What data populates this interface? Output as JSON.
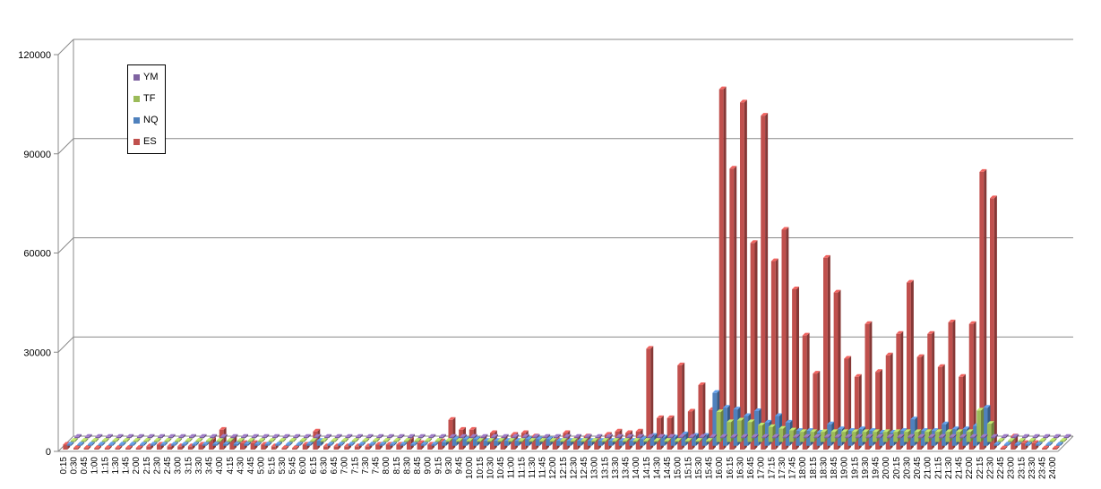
{
  "chart_data": {
    "type": "bar",
    "title": "",
    "xlabel": "",
    "ylabel": "",
    "ylim": [
      0,
      120000
    ],
    "yticks": [
      0,
      30000,
      60000,
      90000,
      120000
    ],
    "grid": true,
    "legend_position": "top-left",
    "categories": [
      "0:15",
      "0:30",
      "0:45",
      "1:00",
      "1:15",
      "1:30",
      "1:45",
      "2:00",
      "2:15",
      "2:30",
      "2:45",
      "3:00",
      "3:15",
      "3:30",
      "3:45",
      "4:00",
      "4:15",
      "4:30",
      "4:45",
      "5:00",
      "5:15",
      "5:30",
      "5:45",
      "6:00",
      "6:15",
      "6:30",
      "6:45",
      "7:00",
      "7:15",
      "7:30",
      "7:45",
      "8:00",
      "8:15",
      "8:30",
      "8:45",
      "9:00",
      "9:15",
      "9:30",
      "9:45",
      "10:00",
      "10:15",
      "10:30",
      "10:45",
      "11:00",
      "11:15",
      "11:30",
      "11:45",
      "12:00",
      "12:15",
      "12:30",
      "12:45",
      "13:00",
      "13:15",
      "13:30",
      "13:45",
      "14:00",
      "14:15",
      "14:30",
      "14:45",
      "15:00",
      "15:15",
      "15:30",
      "15:45",
      "16:00",
      "16:15",
      "16:30",
      "16:45",
      "17:00",
      "17:15",
      "17:30",
      "17:45",
      "18:00",
      "18:15",
      "18:30",
      "18:45",
      "19:00",
      "19:15",
      "19:30",
      "19:45",
      "20:00",
      "20:15",
      "20:30",
      "20:45",
      "21:00",
      "21:15",
      "21:30",
      "21:45",
      "22:00",
      "22:15",
      "22:30",
      "22:45",
      "23:00",
      "23:15",
      "23:30",
      "23:45",
      "24:00"
    ],
    "series": [
      {
        "name": "YM",
        "color": "#7f63a1",
        "values": [
          0,
          0,
          0,
          0,
          0,
          0,
          0,
          0,
          0,
          0,
          0,
          0,
          0,
          0,
          0,
          0,
          0,
          0,
          0,
          0,
          0,
          0,
          0,
          0,
          0,
          0,
          0,
          0,
          0,
          0,
          0,
          0,
          0,
          0,
          0,
          0,
          0,
          0,
          0,
          0,
          0,
          0,
          0,
          0,
          0,
          0,
          0,
          0,
          0,
          0,
          0,
          0,
          0,
          0,
          0,
          0,
          0,
          0,
          0,
          0,
          0,
          0,
          0,
          0,
          0,
          0,
          0,
          0,
          0,
          0,
          0,
          0,
          0,
          0,
          0,
          0,
          0,
          0,
          0,
          0,
          0,
          0,
          0,
          0,
          0,
          0,
          0,
          0,
          0,
          0,
          0,
          0,
          0,
          0,
          0,
          0
        ]
      },
      {
        "name": "TF",
        "color": "#9bbb59",
        "values": [
          0,
          0,
          0,
          0,
          0,
          0,
          0,
          0,
          0,
          0,
          0,
          0,
          0,
          0,
          0,
          0,
          0,
          0,
          0,
          0,
          0,
          0,
          0,
          0,
          0,
          0,
          0,
          0,
          0,
          0,
          0,
          0,
          0,
          0,
          0,
          0,
          0,
          0,
          0,
          0,
          0,
          0,
          0,
          0,
          0,
          0,
          0,
          0,
          0,
          0,
          0,
          0,
          0,
          0,
          0,
          0,
          0,
          0,
          0,
          0,
          0,
          0,
          9000,
          6000,
          6500,
          6000,
          5000,
          4500,
          4000,
          3500,
          3000,
          3000,
          3000,
          3000,
          3000,
          3000,
          3000,
          3000,
          3000,
          3000,
          3000,
          3000,
          3000,
          3000,
          3000,
          3000,
          3000,
          9500,
          5500,
          0,
          0,
          0,
          0,
          0,
          0,
          0
        ]
      },
      {
        "name": "NQ",
        "color": "#4f81bd",
        "values": [
          0,
          0,
          0,
          0,
          0,
          0,
          0,
          0,
          0,
          0,
          0,
          0,
          0,
          0,
          500,
          500,
          500,
          500,
          0,
          0,
          0,
          0,
          0,
          500,
          1500,
          0,
          0,
          0,
          0,
          0,
          0,
          0,
          0,
          0,
          0,
          0,
          1000,
          2000,
          2000,
          2000,
          1500,
          1500,
          1500,
          1500,
          2000,
          2000,
          2000,
          1500,
          1500,
          1500,
          1500,
          1500,
          1500,
          1500,
          1500,
          2000,
          3000,
          2500,
          2500,
          3500,
          3000,
          3000,
          16000,
          11500,
          11000,
          9000,
          10500,
          7000,
          9000,
          7000,
          4500,
          4500,
          4000,
          6500,
          5000,
          4500,
          5000,
          4500,
          4000,
          4000,
          4500,
          8000,
          4500,
          4500,
          6500,
          5000,
          5000,
          6000,
          11500,
          0,
          0,
          0,
          0,
          0,
          0,
          0
        ]
      },
      {
        "name": "ES",
        "color": "#c0504d",
        "values": [
          1500,
          500,
          500,
          500,
          500,
          500,
          500,
          500,
          1000,
          1500,
          1000,
          1000,
          1000,
          1500,
          3000,
          6000,
          3500,
          2000,
          2000,
          1500,
          1000,
          500,
          500,
          1500,
          5500,
          1000,
          1000,
          1000,
          1000,
          1000,
          1500,
          1500,
          1500,
          3000,
          2000,
          1500,
          2500,
          9000,
          6000,
          6000,
          3500,
          5000,
          3500,
          4500,
          5000,
          4000,
          3500,
          3000,
          5000,
          3500,
          4000,
          3000,
          4500,
          5500,
          5000,
          5500,
          30500,
          9500,
          9500,
          25500,
          11500,
          19500,
          12000,
          109000,
          85000,
          105000,
          62500,
          101000,
          57000,
          66500,
          48500,
          34500,
          23000,
          58000,
          47500,
          27500,
          22000,
          38000,
          23500,
          28500,
          35000,
          50500,
          28000,
          35000,
          25000,
          38500,
          22000,
          38000,
          84000,
          76000,
          0,
          4000,
          2000,
          2000,
          0,
          0
        ]
      }
    ]
  }
}
